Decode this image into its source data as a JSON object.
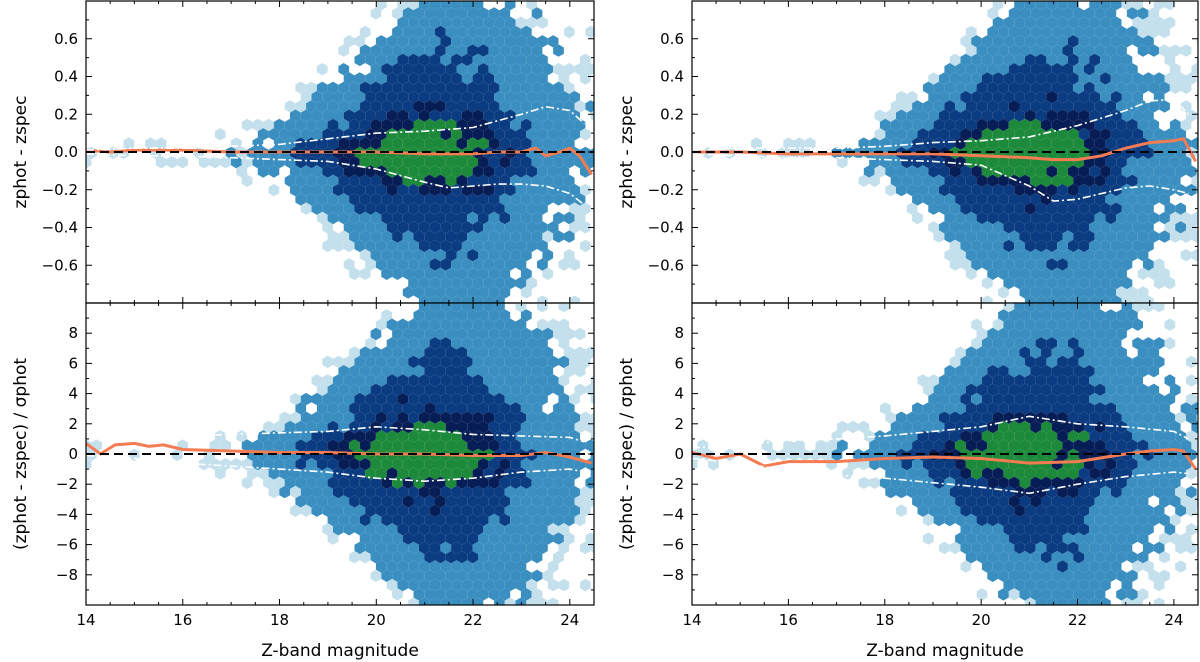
{
  "figure": {
    "title": ""
  },
  "colors": {
    "hex_light": "#c3e0ec",
    "hex_mid": "#3a8fc0",
    "hex_dark": "#0b3b80",
    "hex_core": "#071d55",
    "hex_peak": "#1c8a3a",
    "median_line": "#f47c52",
    "envelope_line": "#ffffff",
    "zero_line": "#000000"
  },
  "chart_data": [
    {
      "type": "hexbin",
      "panel": "top-left",
      "xlabel": "",
      "ylabel": "zphot - zspec",
      "xlim": [
        14,
        24.5
      ],
      "ylim": [
        -0.8,
        0.8
      ],
      "xticks": [
        14,
        16,
        18,
        20,
        22,
        24
      ],
      "yticks": [
        -0.6,
        -0.4,
        -0.2,
        0.0,
        0.2,
        0.4,
        0.6
      ],
      "ytick_labels": [
        "−0.6",
        "−0.4",
        "−0.2",
        "0.0",
        "0.2",
        "0.4",
        "0.6"
      ],
      "series": [
        {
          "name": "median",
          "style": "solid",
          "x": [
            14,
            14.5,
            15,
            15.5,
            16,
            17,
            18,
            19,
            20,
            21,
            21.5,
            22,
            22.5,
            23,
            23.3,
            23.5,
            23.8,
            24,
            24.2,
            24.45
          ],
          "y": [
            0.01,
            0.0,
            0.01,
            0.01,
            0.01,
            0.0,
            0.0,
            0.0,
            0.0,
            -0.01,
            -0.01,
            -0.01,
            0.0,
            0.0,
            0.02,
            -0.02,
            0.0,
            0.02,
            -0.02,
            -0.12
          ]
        },
        {
          "name": "upper envelope",
          "style": "dashdot",
          "x": [
            14,
            15,
            16,
            17,
            18,
            19,
            20,
            21,
            22,
            23,
            23.5,
            24,
            24.3
          ],
          "y": [
            0.01,
            0.02,
            0.02,
            0.03,
            0.04,
            0.07,
            0.1,
            0.11,
            0.13,
            0.2,
            0.24,
            0.22,
            0.15
          ]
        },
        {
          "name": "lower envelope",
          "style": "dashdot",
          "x": [
            14,
            15,
            16,
            17,
            18,
            19,
            20,
            21,
            21.5,
            22,
            22.5,
            23,
            23.5,
            24,
            24.3
          ],
          "y": [
            -0.01,
            -0.02,
            -0.02,
            -0.03,
            -0.04,
            -0.05,
            -0.09,
            -0.16,
            -0.19,
            -0.18,
            -0.17,
            -0.17,
            -0.18,
            -0.22,
            -0.28
          ]
        },
        {
          "name": "zero",
          "style": "dashed",
          "x": [
            14,
            24.5
          ],
          "y": [
            0,
            0
          ]
        }
      ]
    },
    {
      "type": "hexbin",
      "panel": "top-right",
      "xlabel": "",
      "ylabel": "zphot - zspec",
      "xlim": [
        14,
        24.5
      ],
      "ylim": [
        -0.8,
        0.8
      ],
      "xticks": [
        14,
        16,
        18,
        20,
        22,
        24
      ],
      "yticks": [
        -0.6,
        -0.4,
        -0.2,
        0.0,
        0.2,
        0.4,
        0.6
      ],
      "ytick_labels": [
        "−0.6",
        "−0.4",
        "−0.2",
        "0.0",
        "0.2",
        "0.4",
        "0.6"
      ],
      "series": [
        {
          "name": "median",
          "style": "solid",
          "x": [
            14,
            15,
            16,
            17,
            18,
            19,
            20,
            21,
            21.5,
            22,
            22.5,
            23,
            23.5,
            24,
            24.2,
            24.45
          ],
          "y": [
            0.0,
            0.0,
            -0.01,
            -0.01,
            -0.01,
            -0.01,
            -0.02,
            -0.03,
            -0.04,
            -0.04,
            -0.02,
            0.02,
            0.05,
            0.06,
            0.07,
            -0.05
          ]
        },
        {
          "name": "upper envelope",
          "style": "dashdot",
          "x": [
            14,
            15,
            16,
            17,
            18,
            19,
            20,
            21,
            22,
            23,
            23.5,
            24,
            24.3
          ],
          "y": [
            0.01,
            0.02,
            0.02,
            0.02,
            0.03,
            0.05,
            0.06,
            0.08,
            0.14,
            0.22,
            0.27,
            0.28,
            0.2
          ]
        },
        {
          "name": "lower envelope",
          "style": "dashdot",
          "x": [
            14,
            15,
            16,
            17,
            18,
            19,
            20,
            21,
            21.5,
            22,
            22.5,
            23,
            23.5,
            24,
            24.3
          ],
          "y": [
            -0.01,
            -0.02,
            -0.03,
            -0.03,
            -0.04,
            -0.05,
            -0.07,
            -0.18,
            -0.26,
            -0.25,
            -0.22,
            -0.19,
            -0.18,
            -0.2,
            -0.22
          ]
        },
        {
          "name": "zero",
          "style": "dashed",
          "x": [
            14,
            24.5
          ],
          "y": [
            0,
            0
          ]
        }
      ]
    },
    {
      "type": "hexbin",
      "panel": "bottom-left",
      "xlabel": "Z-band magnitude",
      "ylabel": "(zphot - zspec) / σphot",
      "xlim": [
        14,
        24.5
      ],
      "ylim": [
        -10,
        10
      ],
      "xticks": [
        14,
        16,
        18,
        20,
        22,
        24
      ],
      "yticks": [
        -8,
        -6,
        -4,
        -2,
        0,
        2,
        4,
        6,
        8
      ],
      "ytick_labels": [
        "−8",
        "−6",
        "−4",
        "−2",
        "0",
        "2",
        "4",
        "6",
        "8"
      ],
      "series": [
        {
          "name": "median",
          "style": "solid",
          "x": [
            14,
            14.3,
            14.6,
            15,
            15.3,
            15.6,
            16,
            17,
            18,
            19,
            20,
            21,
            22,
            23,
            23.5,
            24,
            24.45
          ],
          "y": [
            0.7,
            0.0,
            0.6,
            0.7,
            0.5,
            0.6,
            0.3,
            0.2,
            0.1,
            0.1,
            0.0,
            0.0,
            -0.1,
            -0.1,
            0.1,
            -0.2,
            -0.6
          ]
        },
        {
          "name": "upper envelope",
          "style": "dashdot",
          "x": [
            14,
            15,
            16,
            17,
            18,
            19,
            20,
            21,
            22,
            23,
            24,
            24.3
          ],
          "y": [
            1.0,
            1.2,
            1.2,
            1.3,
            1.4,
            1.5,
            1.8,
            1.6,
            1.3,
            1.2,
            1.1,
            0.8
          ]
        },
        {
          "name": "lower envelope",
          "style": "dashdot",
          "x": [
            14,
            15,
            16,
            17,
            18,
            19,
            20,
            21,
            22,
            23,
            24,
            24.3
          ],
          "y": [
            -0.1,
            -0.3,
            -0.6,
            -0.8,
            -1.0,
            -1.2,
            -1.6,
            -1.8,
            -1.6,
            -1.2,
            -1.0,
            -1.2
          ]
        },
        {
          "name": "zero",
          "style": "dashed",
          "x": [
            14,
            24.5
          ],
          "y": [
            0,
            0
          ]
        }
      ]
    },
    {
      "type": "hexbin",
      "panel": "bottom-right",
      "xlabel": "Z-band magnitude",
      "ylabel": "(zphot - zspec) / σphot",
      "xlim": [
        14,
        24.5
      ],
      "ylim": [
        -10,
        10
      ],
      "xticks": [
        14,
        16,
        18,
        20,
        22,
        24
      ],
      "yticks": [
        -8,
        -6,
        -4,
        -2,
        0,
        2,
        4,
        6,
        8
      ],
      "ytick_labels": [
        "−8",
        "−6",
        "−4",
        "−2",
        "0",
        "2",
        "4",
        "6",
        "8"
      ],
      "series": [
        {
          "name": "median",
          "style": "solid",
          "x": [
            14,
            14.5,
            15,
            15.5,
            16,
            17,
            18,
            19,
            20,
            21,
            22,
            23,
            23.5,
            24,
            24.2,
            24.45
          ],
          "y": [
            0.1,
            -0.3,
            0.0,
            -0.8,
            -0.5,
            -0.5,
            -0.3,
            -0.2,
            -0.3,
            -0.6,
            -0.5,
            0.0,
            0.2,
            0.3,
            0.2,
            -1.0
          ]
        },
        {
          "name": "upper envelope",
          "style": "dashdot",
          "x": [
            14,
            15,
            16,
            17,
            18,
            19,
            20,
            21,
            22,
            23,
            24,
            24.3
          ],
          "y": [
            0.4,
            0.6,
            0.9,
            1.0,
            1.2,
            1.5,
            1.8,
            2.5,
            2.0,
            1.8,
            1.5,
            1.0
          ]
        },
        {
          "name": "lower envelope",
          "style": "dashdot",
          "x": [
            14,
            15,
            16,
            17,
            18,
            19,
            20,
            21,
            22,
            23,
            24,
            24.3
          ],
          "y": [
            -0.3,
            -0.6,
            -1.1,
            -1.4,
            -1.6,
            -1.9,
            -2.2,
            -2.6,
            -2.0,
            -1.5,
            -1.2,
            -1.3
          ]
        },
        {
          "name": "zero",
          "style": "dashed",
          "x": [
            14,
            24.5
          ],
          "y": [
            0,
            0
          ]
        }
      ]
    }
  ]
}
